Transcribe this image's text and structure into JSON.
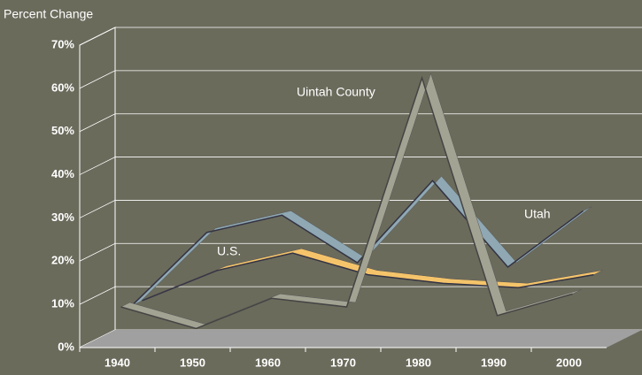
{
  "chart_data": {
    "type": "line",
    "y_axis_label": "Percent Change",
    "categories": [
      "1940",
      "1950",
      "1960",
      "1970",
      "1980",
      "1990",
      "2000"
    ],
    "series": [
      {
        "name": "U.S.",
        "color": "#f5c46a",
        "values": [
          8,
          15,
          19,
          14,
          12,
          11,
          14
        ]
      },
      {
        "name": "Utah",
        "color": "#8fa8b3",
        "values": [
          8,
          25,
          29,
          18,
          37,
          17,
          30
        ]
      },
      {
        "name": "Uintah County",
        "color": "#a3a393",
        "values": [
          9,
          4,
          11,
          9,
          62,
          7,
          12
        ]
      }
    ],
    "ylim": [
      0,
      70
    ],
    "yticks": [
      {
        "value": 0,
        "label": "0%"
      },
      {
        "value": 10,
        "label": "10%"
      },
      {
        "value": 20,
        "label": "20%"
      },
      {
        "value": 30,
        "label": "30%"
      },
      {
        "value": 40,
        "label": "40%"
      },
      {
        "value": 50,
        "label": "50%"
      },
      {
        "value": 60,
        "label": "60%"
      },
      {
        "value": 70,
        "label": "70%"
      }
    ],
    "grid": true
  }
}
